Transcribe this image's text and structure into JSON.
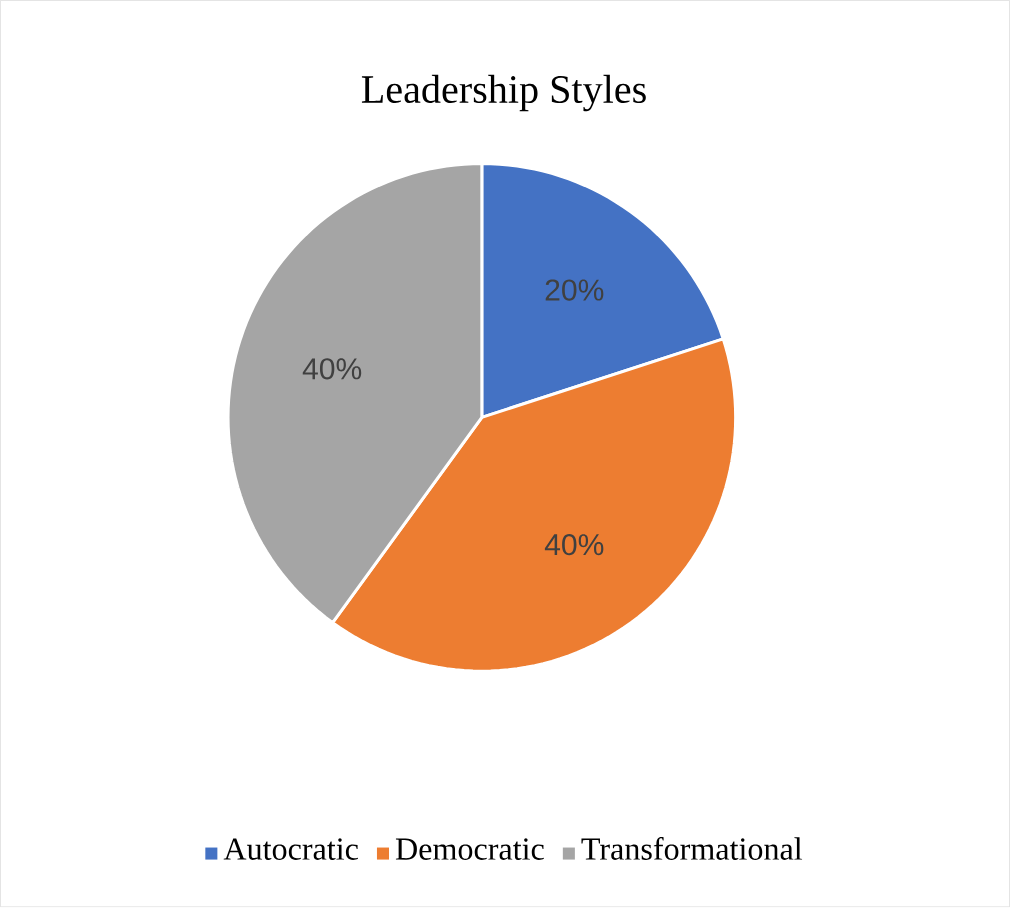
{
  "chart_data": {
    "type": "pie",
    "title": "Leadership Styles",
    "categories": [
      "Autocratic",
      "Democratic",
      "Transformational"
    ],
    "values": [
      20,
      40,
      40
    ],
    "colors": [
      "#4472c4",
      "#ed7d31",
      "#a5a5a5"
    ],
    "value_labels": [
      "20%",
      "40%",
      "40%"
    ],
    "legend": "bottom"
  }
}
